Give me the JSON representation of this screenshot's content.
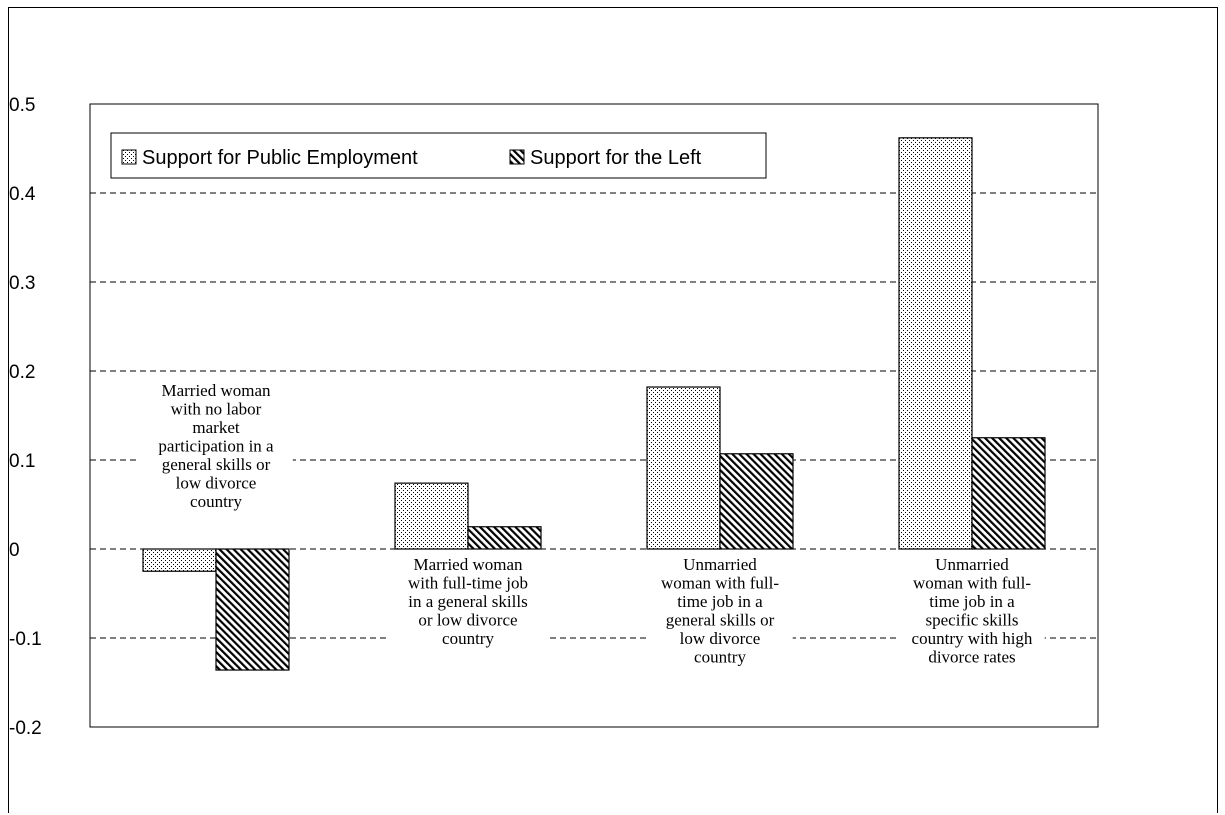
{
  "chart_data": {
    "type": "bar",
    "title": "",
    "xlabel": "",
    "ylabel": "",
    "ylim": [
      -0.2,
      0.5
    ],
    "yticks": [
      -0.2,
      -0.1,
      0,
      0.1,
      0.2,
      0.3,
      0.4,
      0.5
    ],
    "ytick_labels": [
      "-0.2",
      "-0.1",
      "0",
      "0.1",
      "0.2",
      "0.3",
      "0.4",
      "0.5"
    ],
    "grid": "horizontal dashed",
    "legend_position": "top-left",
    "categories": [
      "Married woman with no labor market participation in a general skills or low divorce country",
      "Married woman with full-time job in a general skills or low divorce country",
      "Unmarried woman with full-time job in a general skills or low divorce country",
      "Unmarried woman with full-time job in a specific skills country with high divorce rates"
    ],
    "category_label_lines": [
      [
        "Married woman",
        "with no labor",
        "market",
        "participation in a",
        "general skills or",
        "low divorce",
        "country"
      ],
      [
        "Married woman",
        "with full-time job",
        "in a general skills",
        "or low divorce",
        "country"
      ],
      [
        "Unmarried",
        "woman with full-",
        "time job in a",
        "general skills or",
        "low divorce",
        "country"
      ],
      [
        "Unmarried",
        "woman with full-",
        "time job in a",
        "specific skills",
        "country with high",
        "divorce rates"
      ]
    ],
    "series": [
      {
        "name": "Support for Public Employment",
        "pattern": "dotted",
        "values": [
          -0.025,
          0.074,
          0.182,
          0.462
        ]
      },
      {
        "name": "Support for the Left",
        "pattern": "diagonal-hatch",
        "values": [
          -0.136,
          0.025,
          0.107,
          0.125
        ]
      }
    ]
  }
}
